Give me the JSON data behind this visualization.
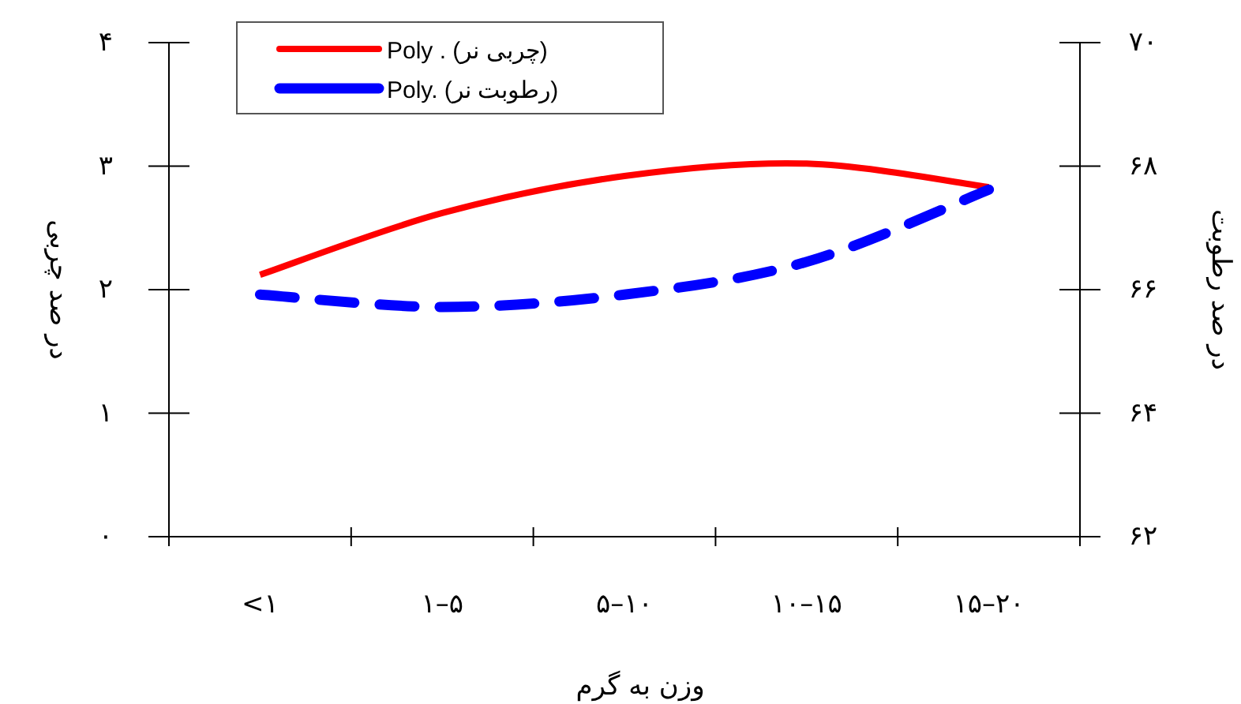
{
  "chart_data": {
    "type": "line",
    "xlabel": "وزن به گرم",
    "ylabel": "در صد چربی",
    "y2label": "در صد رطوبت",
    "categories": [
      "<۱",
      "۱–۵",
      "۵–۱۰",
      "۱۰–۱۵",
      "۱۵–۲۰"
    ],
    "series": [
      {
        "name": "Poly . (چربی نر)",
        "color": "#ff0000",
        "line_style": "solid",
        "values": [
          2.12,
          2.62,
          2.92,
          3.02,
          2.83
        ]
      },
      {
        "name": "Poly. (رطوبت نر)",
        "color": "#0000ff",
        "line_style": "dashed",
        "axis": "y2",
        "values": [
          65.92,
          65.72,
          65.92,
          66.45,
          67.62
        ]
      }
    ],
    "ylim": [
      0,
      4
    ],
    "yticks": [
      {
        "value": 0,
        "label": "۰"
      },
      {
        "value": 1,
        "label": "۱"
      },
      {
        "value": 2,
        "label": "۲"
      },
      {
        "value": 3,
        "label": "۳"
      },
      {
        "value": 4,
        "label": "۴"
      }
    ],
    "y2lim": [
      62,
      70
    ],
    "y2ticks": [
      {
        "value": 62,
        "label": "۶۲"
      },
      {
        "value": 64,
        "label": "۶۴"
      },
      {
        "value": 66,
        "label": "۶۶"
      },
      {
        "value": 68,
        "label": "۶۸"
      },
      {
        "value": 70,
        "label": "۷۰"
      }
    ],
    "legend": "top left"
  }
}
